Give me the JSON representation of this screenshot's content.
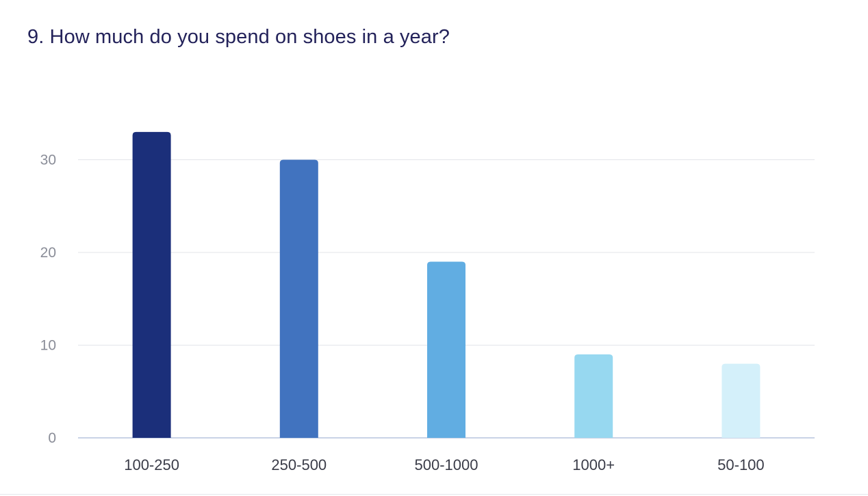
{
  "card": {
    "title": "9. How much do you spend on shoes in a year?"
  },
  "chart_data": {
    "type": "bar",
    "title": "9. How much do you spend on shoes in a year?",
    "xlabel": "",
    "ylabel": "",
    "categories": [
      "100-250",
      "250-500",
      "500-1000",
      "1000+",
      "50-100"
    ],
    "values": [
      33,
      30,
      19,
      9,
      8
    ],
    "colors": [
      "#1b2f7a",
      "#4173bf",
      "#61ade2",
      "#97d8f0",
      "#d4f0fa"
    ],
    "ylim": [
      0,
      30
    ],
    "yticks": [
      0,
      10,
      20,
      30
    ],
    "grid": true,
    "legend": "none"
  }
}
